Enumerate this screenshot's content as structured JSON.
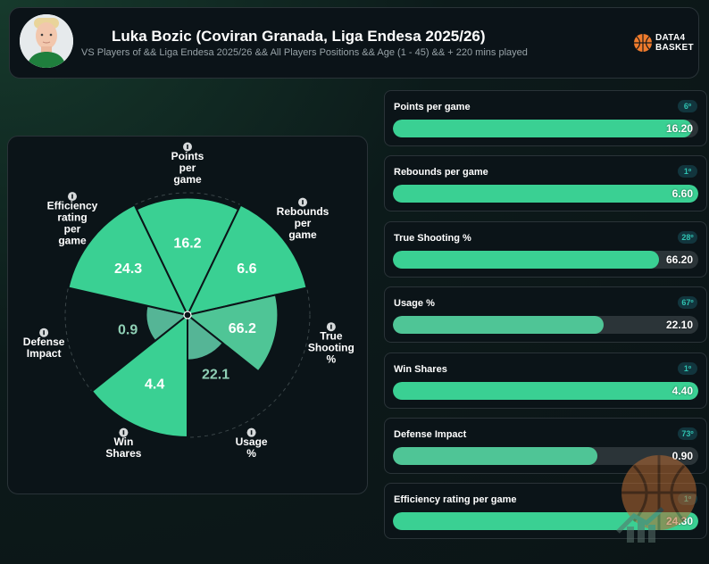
{
  "header": {
    "title": "Luka Bozic (Coviran Granada, Liga Endesa 2025/26)",
    "subtitle": "VS Players of && Liga Endesa 2025/26 && All Players Positions && Age (1 - 45) && + 220 mins played",
    "brand_line1": "DATA4",
    "brand_line2": "BASKET"
  },
  "colors": {
    "bright": "#3ad093",
    "mid": "#4fc596",
    "dim": "#55b596",
    "track": "#2b3438",
    "badge_text": "#2fc1b0"
  },
  "chart_data": {
    "type": "polar-area",
    "title": "",
    "max_percentile": 100,
    "categories": [
      "Points per game",
      "Rebounds per game",
      "True Shooting %",
      "Usage %",
      "Win Shares",
      "Defense Impact",
      "Efficiency rating per game"
    ],
    "axis_labels": [
      [
        "Points",
        "per",
        "game"
      ],
      [
        "Rebounds",
        "per",
        "game"
      ],
      [
        "True",
        "Shooting",
        "%"
      ],
      [
        "Usage",
        "%"
      ],
      [
        "Win",
        "Shares"
      ],
      [
        "Defense",
        "Impact"
      ],
      [
        "Efficiency",
        "rating",
        "per",
        "game"
      ]
    ],
    "value_labels": [
      "16.2",
      "6.6",
      "66.2",
      "22.1",
      "4.4",
      "0.9",
      "24.3"
    ],
    "percentiles": [
      96,
      100,
      74,
      37,
      100,
      34,
      100
    ],
    "tone": [
      "bright",
      "bright",
      "mid",
      "dim",
      "bright",
      "dim",
      "bright"
    ]
  },
  "metrics": [
    {
      "label": "Points per game",
      "rank": "6º",
      "value": "16.20",
      "fill": 0.98,
      "tone": "bright"
    },
    {
      "label": "Rebounds per game",
      "rank": "1º",
      "value": "6.60",
      "fill": 1.0,
      "tone": "bright"
    },
    {
      "label": "True Shooting %",
      "rank": "28º",
      "value": "66.20",
      "fill": 0.87,
      "tone": "bright"
    },
    {
      "label": "Usage %",
      "rank": "67º",
      "value": "22.10",
      "fill": 0.69,
      "tone": "mid"
    },
    {
      "label": "Win Shares",
      "rank": "1º",
      "value": "4.40",
      "fill": 1.0,
      "tone": "bright"
    },
    {
      "label": "Defense Impact",
      "rank": "73º",
      "value": "0.90",
      "fill": 0.67,
      "tone": "mid"
    },
    {
      "label": "Efficiency rating per game",
      "rank": "1º",
      "value": "24.30",
      "fill": 1.0,
      "tone": "bright"
    }
  ]
}
